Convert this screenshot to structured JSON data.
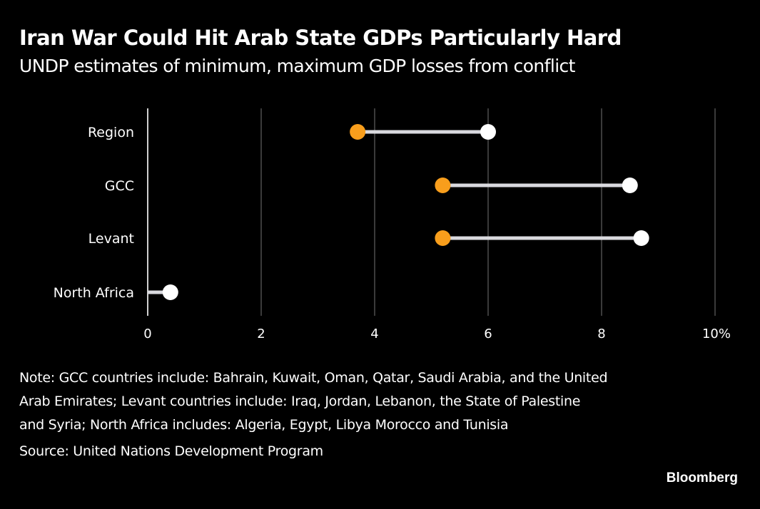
{
  "header": {
    "title": "Iran War Could Hit Arab State GDPs Particularly Hard",
    "subtitle": "UNDP estimates of minimum, maximum GDP losses from conflict"
  },
  "footer": {
    "note_lines": [
      "Note: GCC countries include: Bahrain, Kuwait, Oman, Qatar, Saudi Arabia, and the United",
      "Arab Emirates; Levant countries include: Iraq, Jordan, Lebanon, the State of Palestine",
      "and Syria; North Africa includes: Algeria, Egypt, Libya Morocco and Tunisia"
    ],
    "source": "Source: United Nations Development Program",
    "brand": "Bloomberg"
  },
  "colors": {
    "background": "#000000",
    "min_marker": "#F89E1C",
    "max_marker": "#FFFFFF",
    "connector": "#D9D9DE",
    "gridline": "#5A5A5A",
    "axis": "#D0D0D0"
  },
  "chart_data": {
    "type": "dumbbell",
    "title": "Iran War Could Hit Arab State GDPs Particularly Hard",
    "subtitle": "UNDP estimates of minimum, maximum GDP losses from conflict",
    "categories": [
      "Region",
      "GCC",
      "Levant",
      "North Africa"
    ],
    "series": [
      {
        "name": "Minimum",
        "values": [
          3.7,
          5.2,
          5.2,
          0.0
        ]
      },
      {
        "name": "Maximum",
        "values": [
          6.0,
          8.5,
          8.7,
          0.4
        ]
      }
    ],
    "xlim": [
      0,
      10
    ],
    "xticks": [
      0,
      2,
      4,
      6,
      8,
      10
    ],
    "xtick_labels": [
      "0",
      "2",
      "4",
      "6",
      "8",
      "10%"
    ],
    "xlabel": "",
    "ylabel": "",
    "grid": true,
    "legend": "none",
    "source": "United Nations Development Program"
  }
}
